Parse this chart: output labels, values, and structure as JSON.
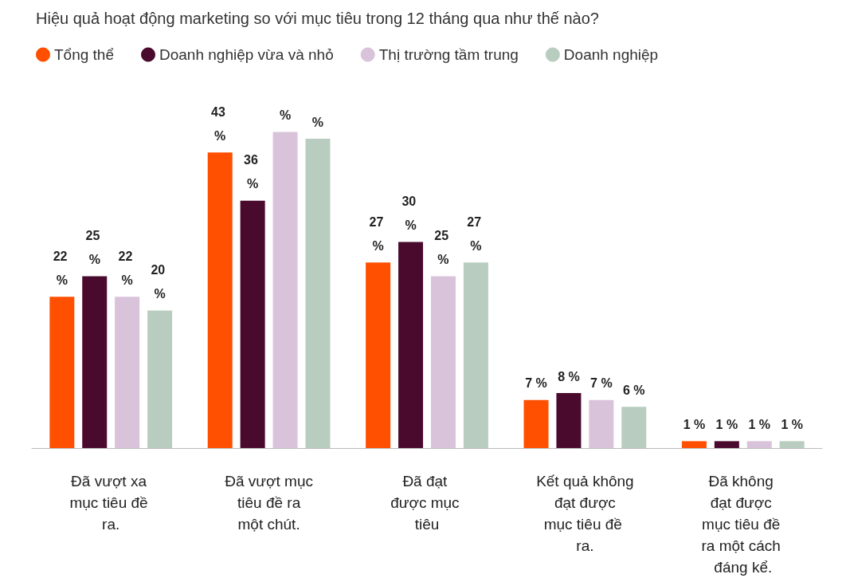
{
  "chart_data": {
    "type": "bar",
    "title": "Hiệu quả hoạt động marketing so với mục tiêu trong 12 tháng qua như thế nào?",
    "categories": [
      "Đã vượt xa mục tiêu đề ra.",
      "Đã vượt mục tiêu đề ra một chút.",
      "Đã đạt được mục tiêu",
      "Kết quả không đạt được mục tiêu đề ra.",
      "Đã không đạt được mục tiêu đề ra một cách đáng kể."
    ],
    "series": [
      {
        "name": "Tổng thể",
        "color": "#ff4f00",
        "values": [
          22,
          43,
          27,
          7,
          1
        ],
        "value_labels": [
          "22 %",
          "43 %",
          "27 %",
          "7 %",
          "1 %"
        ]
      },
      {
        "name": "Doanh nghiệp vừa và nhỏ",
        "color": "#4a0a2e",
        "values": [
          25,
          36,
          30,
          8,
          1
        ],
        "value_labels": [
          "25 %",
          "36 %",
          "30 %",
          "8 %",
          "1 %"
        ]
      },
      {
        "name": "Thị trường tầm trung",
        "color": "#d9c3da",
        "values": [
          22,
          46,
          25,
          7,
          1
        ],
        "value_labels": [
          "22 %",
          "%",
          "25 %",
          "7 %",
          "1 %"
        ]
      },
      {
        "name": "Doanh nghiệp",
        "color": "#b8cdbf",
        "values": [
          20,
          45,
          27,
          6,
          1
        ],
        "value_labels": [
          "20 %",
          "%",
          "27 %",
          "6 %",
          "1 %"
        ]
      }
    ],
    "legend": "top left",
    "grid": false
  }
}
